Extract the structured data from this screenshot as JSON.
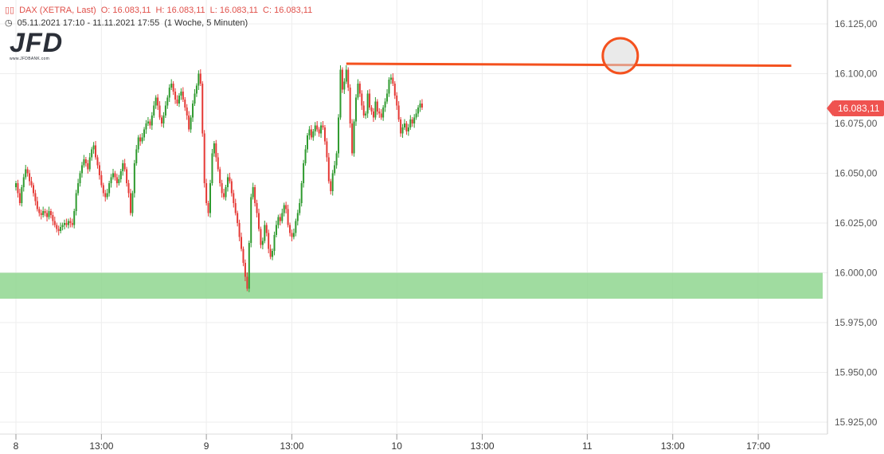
{
  "header": {
    "instrument": "DAX (XETRA, Last)",
    "open": "O: 16.083,11",
    "high": "H: 16.083,11",
    "low": "L: 16.083,11",
    "close": "C: 16.083,11",
    "range": "05.11.2021 17:10 - 11.11.2021 17:55",
    "interval": "(1 Woche, 5 Minuten)"
  },
  "logo": {
    "main": "JFD",
    "sub": "www.JFDBANK.com"
  },
  "price_tag": "16.083,11",
  "colors": {
    "up": "#2e9a2e",
    "down": "#e53935",
    "zone": "#8fd68f",
    "resistance": "#f4511e",
    "grid": "#eeeeee"
  },
  "chart_data": {
    "type": "candlestick",
    "title": "",
    "xlabel": "",
    "ylabel": "",
    "ylim": [
      15915,
      16135
    ],
    "yticks": [
      "16.125,00",
      "16.100,00",
      "16.075,00",
      "16.050,00",
      "16.025,00",
      "16.000,00",
      "15.975,00",
      "15.950,00",
      "15.925,00"
    ],
    "yticks_values": [
      16125,
      16100,
      16075,
      16050,
      16025,
      16000,
      15975,
      15950,
      15925
    ],
    "xticks": [
      {
        "label": "8",
        "pos": 0
      },
      {
        "label": "13:00",
        "pos": 44
      },
      {
        "label": "9",
        "pos": 98
      },
      {
        "label": "13:00",
        "pos": 142
      },
      {
        "label": "10",
        "pos": 196
      },
      {
        "label": "13:00",
        "pos": 240
      },
      {
        "label": "11",
        "pos": 294
      },
      {
        "label": "13:00",
        "pos": 338
      },
      {
        "label": "17:00",
        "pos": 382
      }
    ],
    "support_zone": [
      15987,
      16000
    ],
    "resistance_line": [
      {
        "pos": 170,
        "value": 16105
      },
      {
        "pos": 399,
        "value": 16104
      }
    ],
    "highlight": {
      "pos": 311,
      "value": 16109
    },
    "closes": [
      16045,
      16040,
      16035,
      16043,
      16048,
      16052,
      16050,
      16046,
      16044,
      16040,
      16036,
      16032,
      16030,
      16029,
      16031,
      16030,
      16028,
      16031,
      16029,
      16026,
      16024,
      16022,
      16021,
      16023,
      16024,
      16025,
      16024,
      16026,
      16025,
      16024,
      16031,
      16040,
      16045,
      16050,
      16054,
      16057,
      16055,
      16052,
      16058,
      16062,
      16064,
      16058,
      16054,
      16049,
      16044,
      16040,
      16038,
      16040,
      16045,
      16048,
      16050,
      16048,
      16045,
      16047,
      16051,
      16055,
      16052,
      16045,
      16040,
      16030,
      16040,
      16055,
      16062,
      16068,
      16066,
      16068,
      16072,
      16075,
      16076,
      16074,
      16079,
      16084,
      16088,
      16084,
      16078,
      16075,
      16079,
      16084,
      16088,
      16093,
      16095,
      16091,
      16087,
      16085,
      16089,
      16091,
      16087,
      16083,
      16079,
      16072,
      16078,
      16085,
      16090,
      16094,
      16100,
      16095,
      16070,
      16045,
      16035,
      16030,
      16045,
      16060,
      16065,
      16058,
      16052,
      16045,
      16040,
      16038,
      16043,
      16048,
      16046,
      16040,
      16035,
      16030,
      16025,
      16018,
      16012,
      16005,
      15998,
      15992,
      16015,
      16038,
      16043,
      16035,
      16030,
      16022,
      16014,
      16016,
      16024,
      16020,
      16012,
      16008,
      16011,
      16019,
      16024,
      16028,
      16026,
      16030,
      16034,
      16032,
      16024,
      16020,
      16018,
      16020,
      16026,
      16030,
      16035,
      16045,
      16055,
      16062,
      16069,
      16072,
      16068,
      16071,
      16074,
      16072,
      16070,
      16074,
      16073,
      16066,
      16058,
      16046,
      16041,
      16050,
      16054,
      16060,
      16078,
      16102,
      16092,
      16096,
      16102,
      16093,
      16075,
      16060,
      16076,
      16088,
      16095,
      16090,
      16084,
      16079,
      16080,
      16090,
      16083,
      16081,
      16078,
      16086,
      16081,
      16080,
      16078,
      16083,
      16086,
      16090,
      16097,
      16098,
      16095,
      16089,
      16084,
      16077,
      16070,
      16073,
      16075,
      16071,
      16073,
      16077,
      16075,
      16078,
      16080,
      16083,
      16085,
      16083
    ]
  }
}
